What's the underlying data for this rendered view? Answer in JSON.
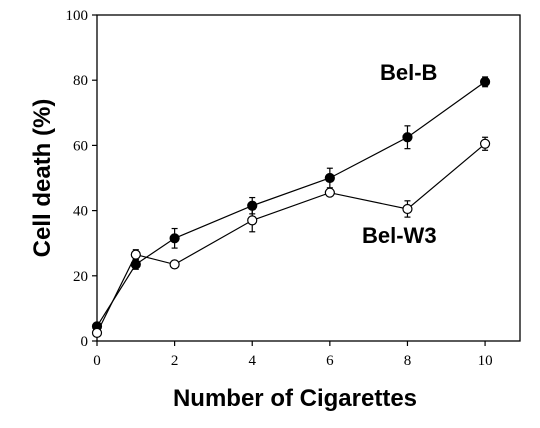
{
  "chart_data": {
    "type": "line",
    "title": "",
    "xlabel": "Number of Cigarettes",
    "ylabel": "Cell death (%)",
    "xlim": [
      0,
      10.9
    ],
    "ylim": [
      0,
      100
    ],
    "x_ticks": [
      "0",
      "2",
      "4",
      "6",
      "8",
      "10"
    ],
    "y_ticks": [
      "0",
      "20",
      "40",
      "60",
      "80",
      "100"
    ],
    "grid": false,
    "series": [
      {
        "name": "Bel-B",
        "marker": "filled-circle",
        "color": "#000000",
        "x": [
          0,
          1,
          2,
          4,
          6,
          8,
          10
        ],
        "y": [
          4.5,
          23.5,
          31.5,
          41.5,
          50,
          62.5,
          79.5
        ],
        "err": [
          0.5,
          1.5,
          3,
          2.5,
          3,
          3.5,
          1.5
        ]
      },
      {
        "name": "Bel-W3",
        "marker": "open-circle",
        "color": "#000000",
        "x": [
          0,
          1,
          2,
          4,
          6,
          8,
          10
        ],
        "y": [
          2.5,
          26.5,
          23.5,
          37,
          45.5,
          40.5,
          60.5
        ],
        "err": [
          0.5,
          1.5,
          1,
          3.5,
          1,
          2.5,
          2
        ]
      }
    ]
  }
}
